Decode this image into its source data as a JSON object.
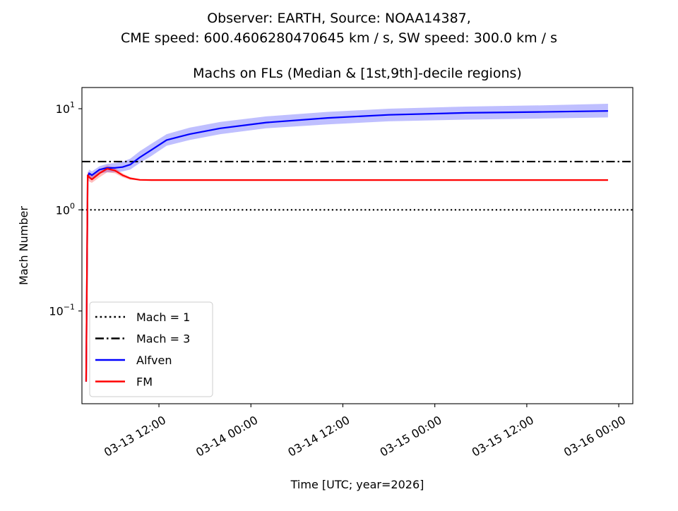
{
  "chart_data": {
    "type": "line",
    "title": "Observer: EARTH, Source: NOAA14387,",
    "title_line2": "CME speed: 600.4606280470645 km / s, SW speed: 300.0 km / s",
    "subtitle": "Machs on FLs (Median & [1st,9th]-decile regions)",
    "x_label": "Time [UTC; year=2026]",
    "y_label": "Mach Number",
    "log_y": true,
    "legend": "lower left",
    "xlim": [
      "2026-03-13T01:57",
      "2026-03-16T01:50"
    ],
    "ylim": [
      0.0121,
      16.2
    ],
    "xticks": [
      {
        "value": "2026-03-13T12:00",
        "label": "03-13 12:00"
      },
      {
        "value": "2026-03-14T00:00",
        "label": "03-14 00:00"
      },
      {
        "value": "2026-03-14T12:00",
        "label": "03-14 12:00"
      },
      {
        "value": "2026-03-15T00:00",
        "label": "03-15 00:00"
      },
      {
        "value": "2026-03-15T12:00",
        "label": "03-15 12:00"
      },
      {
        "value": "2026-03-16T00:00",
        "label": "03-16 00:00"
      }
    ],
    "yticks": [
      {
        "value": 0.1,
        "label": "10",
        "exponent": "−1"
      },
      {
        "value": 1,
        "label": "10",
        "exponent": "0"
      },
      {
        "value": 10,
        "label": "10",
        "exponent": "1"
      }
    ],
    "hlines": [
      {
        "name": "Mach = 1",
        "value": 1,
        "color": "#000000",
        "style": "dotted"
      },
      {
        "name": "Mach = 3",
        "value": 3,
        "color": "#000000",
        "style": "dashdot"
      }
    ],
    "x": [
      "2026-03-13T02:30",
      "2026-03-13T02:42",
      "2026-03-13T02:54",
      "2026-03-13T03:15",
      "2026-03-13T04:15",
      "2026-03-13T05:15",
      "2026-03-13T06:15",
      "2026-03-13T07:15",
      "2026-03-13T08:15",
      "2026-03-13T09:30",
      "2026-03-13T11:00",
      "2026-03-13T13:00",
      "2026-03-13T16:00",
      "2026-03-13T20:00",
      "2026-03-14T02:00",
      "2026-03-14T10:00",
      "2026-03-14T18:00",
      "2026-03-15T04:00",
      "2026-03-15T14:00",
      "2026-03-15T22:36"
    ],
    "band_alpha": 0.25,
    "series": [
      {
        "name": "Alfven",
        "color": "#0000ff",
        "values": [
          0.02,
          2.1,
          2.3,
          2.2,
          2.5,
          2.6,
          2.6,
          2.65,
          2.8,
          3.3,
          3.9,
          4.9,
          5.6,
          6.4,
          7.3,
          8.1,
          8.7,
          9.1,
          9.3,
          9.5
        ],
        "lower": [
          0.02,
          1.9,
          2.1,
          2.0,
          2.3,
          2.35,
          2.35,
          2.4,
          2.5,
          2.9,
          3.4,
          4.3,
          4.9,
          5.6,
          6.4,
          7.0,
          7.5,
          7.8,
          8.0,
          8.2
        ],
        "upper": [
          0.02,
          2.3,
          2.5,
          2.4,
          2.7,
          2.85,
          2.9,
          3.0,
          3.2,
          3.8,
          4.5,
          5.6,
          6.5,
          7.4,
          8.4,
          9.3,
          10.0,
          10.5,
          10.8,
          11.2
        ]
      },
      {
        "name": "FM",
        "color": "#ff0000",
        "values": [
          0.02,
          2.2,
          2.1,
          2.0,
          2.3,
          2.55,
          2.45,
          2.2,
          2.05,
          1.98,
          1.97,
          1.97,
          1.97,
          1.97,
          1.97,
          1.97,
          1.97,
          1.97,
          1.97,
          1.97
        ],
        "lower": [
          0.02,
          2.0,
          1.9,
          1.85,
          2.1,
          2.35,
          2.3,
          2.1,
          1.98,
          1.95,
          1.95,
          1.95,
          1.95,
          1.95,
          1.95,
          1.95,
          1.95,
          1.95,
          1.95,
          1.95
        ],
        "upper": [
          0.02,
          2.4,
          2.3,
          2.2,
          2.5,
          2.75,
          2.6,
          2.3,
          2.1,
          2.01,
          2.0,
          2.0,
          2.0,
          2.0,
          2.0,
          2.0,
          2.0,
          2.0,
          2.0,
          2.0
        ]
      }
    ]
  }
}
